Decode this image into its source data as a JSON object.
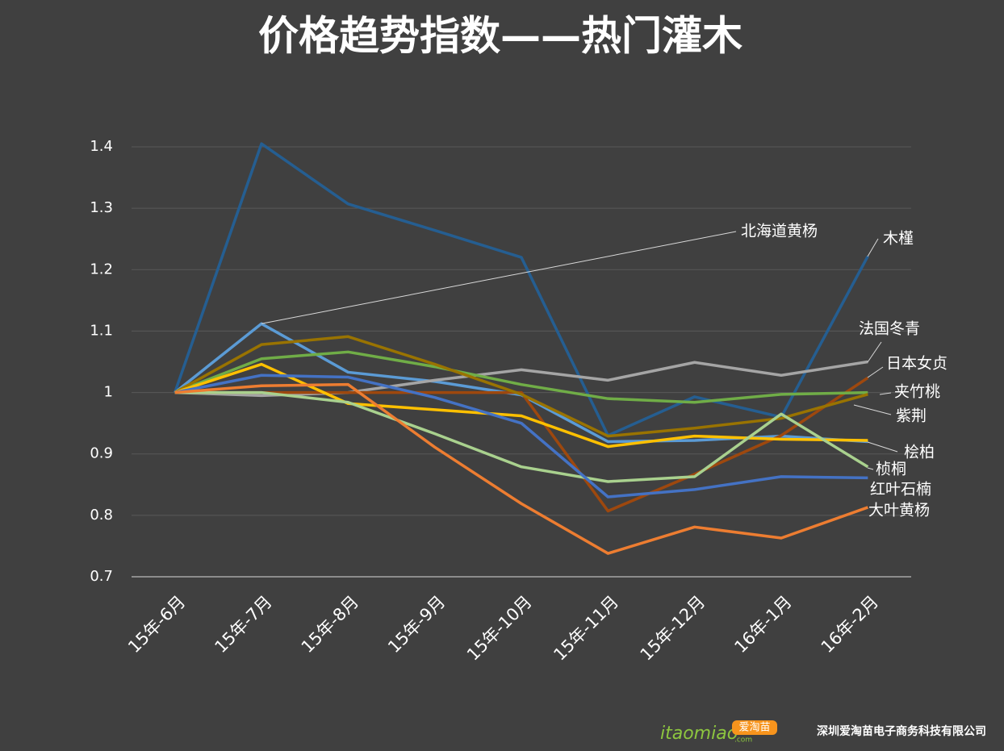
{
  "chart_data": {
    "type": "line",
    "title": "价格趋势指数——热门灌木",
    "categories": [
      "15年-6月",
      "15年-7月",
      "15年-8月",
      "15年-9月",
      "15年-10月",
      "15年-11月",
      "15年-12月",
      "16年-1月",
      "16年-2月"
    ],
    "ylim": [
      0.7,
      1.4
    ],
    "yticks": [
      0.7,
      0.8,
      0.9,
      1,
      1.1,
      1.2,
      1.3,
      1.4
    ],
    "grid": true,
    "series": [
      {
        "name": "木槿",
        "color": "#255e91",
        "values": [
          1,
          1.405,
          1.307,
          1.264,
          1.22,
          0.93,
          0.993,
          0.96,
          1.222
        ]
      },
      {
        "name": "北海道黄杨",
        "color": "#5b9bd5",
        "values": [
          1,
          1.112,
          1.033,
          1.018,
          0.996,
          0.92,
          0.922,
          0.929,
          0.92
        ]
      },
      {
        "name": "法国冬青",
        "color": "#a5a5a5",
        "values": [
          1,
          0.995,
          1.0,
          1.02,
          1.037,
          1.02,
          1.049,
          1.028,
          1.05
        ]
      },
      {
        "name": "日本女贞",
        "color": "#9e480e",
        "values": [
          1,
          1.0,
          1.0,
          1.0,
          1.0,
          0.807,
          0.867,
          0.93,
          1.024
        ]
      },
      {
        "name": "夹竹桃",
        "color": "#70ad47",
        "values": [
          1,
          1.055,
          1.066,
          1.042,
          1.013,
          0.99,
          0.984,
          0.997,
          1.0
        ]
      },
      {
        "name": "紫荆",
        "color": "#997300",
        "values": [
          1,
          1.078,
          1.091,
          1.046,
          0.997,
          0.929,
          0.942,
          0.958,
          0.997
        ]
      },
      {
        "name": "桧柏",
        "color": "#ffc000",
        "values": [
          1,
          1.046,
          0.982,
          0.972,
          0.962,
          0.912,
          0.929,
          0.924,
          0.922
        ]
      },
      {
        "name": "桢桐",
        "color": "#a9d18e",
        "values": [
          1,
          1.0,
          0.984,
          0.933,
          0.879,
          0.855,
          0.863,
          0.965,
          0.879
        ]
      },
      {
        "name": "红叶石楠",
        "color": "#4472c4",
        "values": [
          1,
          1.028,
          1.025,
          0.992,
          0.95,
          0.83,
          0.842,
          0.863,
          0.861
        ]
      },
      {
        "name": "大叶黄杨",
        "color": "#ed7d31",
        "values": [
          1,
          1.011,
          1.013,
          0.911,
          0.819,
          0.738,
          0.781,
          0.763,
          0.813
        ]
      }
    ]
  },
  "footer": {
    "logo": "itaomiao",
    "logo_domain": ".com",
    "badge": "爱淘苗",
    "company": "深圳爱淘苗电子商务科技有限公司"
  }
}
